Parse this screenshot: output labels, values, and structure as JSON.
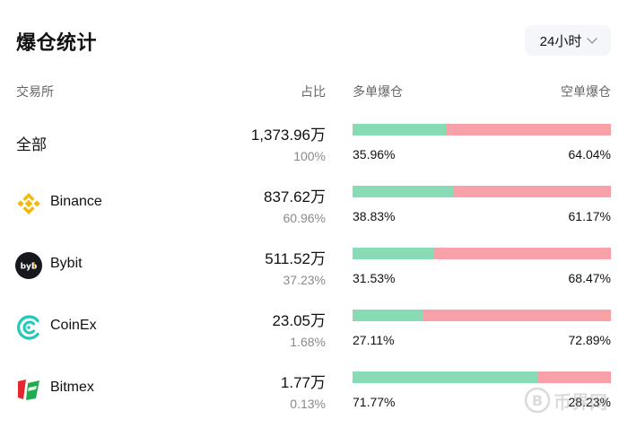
{
  "title": "爆仓统计",
  "period": {
    "label": "24小时"
  },
  "headers": {
    "exchange": "交易所",
    "share": "占比",
    "long": "多单爆仓",
    "short": "空单爆仓"
  },
  "rows": [
    {
      "name": "全部",
      "icon": "",
      "amount": "1,373.96万",
      "share": "100%",
      "long_pct": "35.96%",
      "short_pct": "64.04%",
      "long_ratio": 0.3596
    },
    {
      "name": "Binance",
      "icon": "binance-logo",
      "amount": "837.62万",
      "share": "60.96%",
      "long_pct": "38.83%",
      "short_pct": "61.17%",
      "long_ratio": 0.3883
    },
    {
      "name": "Bybit",
      "icon": "bybit-logo",
      "amount": "511.52万",
      "share": "37.23%",
      "long_pct": "31.53%",
      "short_pct": "68.47%",
      "long_ratio": 0.3153
    },
    {
      "name": "CoinEx",
      "icon": "coinex-logo",
      "amount": "23.05万",
      "share": "1.68%",
      "long_pct": "27.11%",
      "short_pct": "72.89%",
      "long_ratio": 0.2711
    },
    {
      "name": "Bitmex",
      "icon": "bitmex-logo",
      "amount": "1.77万",
      "share": "0.13%",
      "long_pct": "71.77%",
      "short_pct": "28.23%",
      "long_ratio": 0.7177
    }
  ],
  "colors": {
    "long": "#87dcb6",
    "short": "#f9a1a9"
  },
  "watermark": "币界网"
}
